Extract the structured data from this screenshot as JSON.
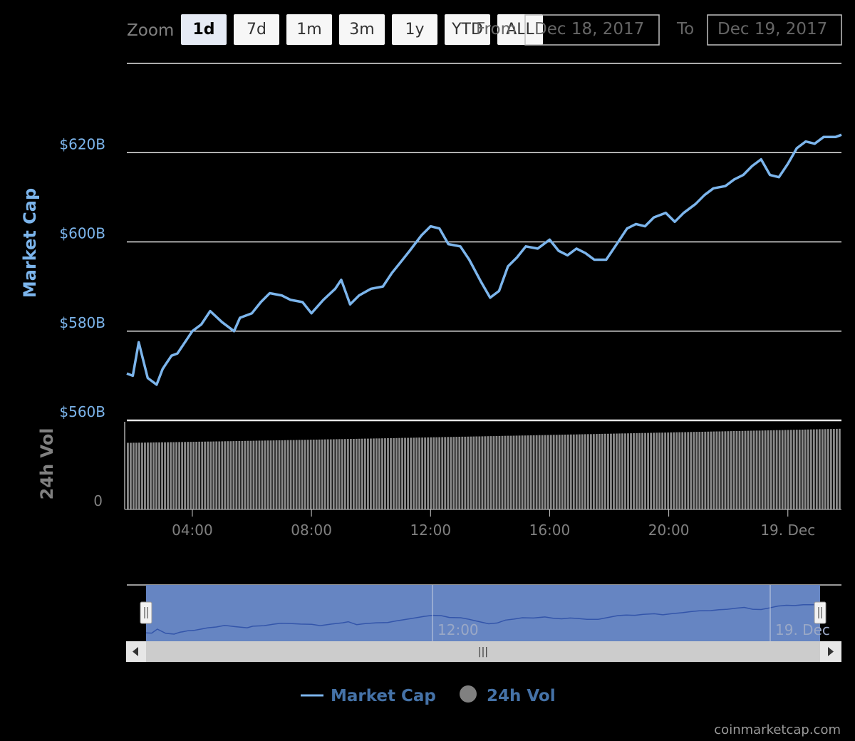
{
  "toolbar": {
    "zoom_label": "Zoom",
    "zoom_buttons": [
      "1d",
      "7d",
      "1m",
      "3m",
      "1y",
      "YTD",
      "ALL"
    ],
    "active_zoom": "1d",
    "from_label": "From",
    "from_value": "Dec 18, 2017",
    "to_label": "To",
    "to_value": "Dec 19, 2017"
  },
  "legend": {
    "market_cap": "Market Cap",
    "volume": "24h Vol"
  },
  "credit": "coinmarketcap.com",
  "colors": {
    "market_cap": "#7cb5ec",
    "volume_axis": "#808080",
    "volume_bars": "#8a8a8a",
    "navigator_fill": "#6685c2",
    "legend_text": "#4572a7"
  },
  "chart_data": {
    "type": "line",
    "title": "",
    "xlabel": "",
    "ylabel": "Market Cap",
    "y_axis_ticks": [
      "$560B",
      "$580B",
      "$600B",
      "$620B"
    ],
    "ylim_billions": [
      560,
      640
    ],
    "x_ticks": [
      "04:00",
      "08:00",
      "12:00",
      "16:00",
      "20:00",
      "19. Dec"
    ],
    "x_hours_range": [
      1.8,
      25.8
    ],
    "x_tick_hours": [
      4,
      8,
      12,
      16,
      20,
      24
    ],
    "series": [
      {
        "name": "Market Cap",
        "unit": "billions USD",
        "hours_of_day": [
          1.8,
          2.0,
          2.2,
          2.5,
          2.8,
          3.0,
          3.1,
          3.3,
          3.5,
          3.8,
          4.0,
          4.3,
          4.6,
          5.0,
          5.4,
          5.6,
          6.0,
          6.3,
          6.6,
          7.0,
          7.3,
          7.7,
          8.0,
          8.4,
          8.8,
          9.0,
          9.3,
          9.6,
          10.0,
          10.4,
          10.7,
          11.0,
          11.3,
          11.7,
          12.0,
          12.3,
          12.6,
          13.0,
          13.3,
          13.7,
          14.0,
          14.3,
          14.6,
          14.9,
          15.2,
          15.6,
          16.0,
          16.3,
          16.6,
          16.9,
          17.2,
          17.5,
          17.9,
          18.2,
          18.6,
          18.9,
          19.2,
          19.5,
          19.9,
          20.2,
          20.5,
          20.9,
          21.2,
          21.5,
          21.9,
          22.2,
          22.5,
          22.8,
          23.1,
          23.4,
          23.7,
          24.0,
          24.3,
          24.6,
          24.9,
          25.2,
          25.6,
          25.8
        ],
        "values": [
          570.5,
          570.0,
          577.5,
          569.5,
          568.0,
          571.5,
          572.5,
          574.5,
          575.0,
          578.0,
          580.0,
          581.5,
          584.5,
          582.0,
          580.0,
          583.0,
          584.0,
          586.5,
          588.5,
          588.0,
          587.0,
          586.5,
          584.0,
          587.0,
          589.5,
          591.5,
          586.0,
          588.0,
          589.5,
          590.0,
          593.0,
          595.5,
          598.0,
          601.5,
          603.5,
          603.0,
          599.5,
          599.0,
          596.0,
          591.0,
          587.5,
          589.0,
          594.5,
          596.5,
          599.0,
          598.5,
          600.5,
          598.0,
          597.0,
          598.5,
          597.5,
          596.0,
          596.0,
          599.0,
          603.0,
          604.0,
          603.5,
          605.5,
          606.5,
          604.5,
          606.5,
          608.5,
          610.5,
          612.0,
          612.5,
          614.0,
          615.0,
          617.0,
          618.5,
          615.0,
          614.5,
          617.5,
          621.0,
          622.5,
          622.0,
          623.5,
          623.5,
          624.0
        ]
      },
      {
        "name": "24h Vol",
        "unit": "relative",
        "start": 38,
        "end": 46,
        "bar_count": 250
      }
    ],
    "navigator": {
      "labels": [
        "12:00",
        "19. Dec"
      ],
      "scrollbar_grip": "|||"
    },
    "grid": true,
    "legend_position": "bottom-center"
  }
}
